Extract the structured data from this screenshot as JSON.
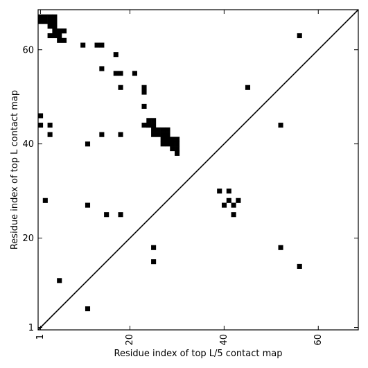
{
  "chart_data": {
    "type": "heatmap",
    "title": "",
    "xlabel": "Residue index of top L/5 contact map",
    "ylabel": "Residue index of top L contact map",
    "xlim": [
      0.5,
      68.5
    ],
    "ylim": [
      0.5,
      68.5
    ],
    "xticks": [
      1,
      20,
      40,
      60
    ],
    "yticks": [
      1,
      20,
      40,
      60
    ],
    "diagonal_line": true,
    "color": "#000000",
    "cells": [
      [
        1,
        67
      ],
      [
        2,
        67
      ],
      [
        3,
        67
      ],
      [
        4,
        67
      ],
      [
        1,
        66
      ],
      [
        2,
        66
      ],
      [
        3,
        66
      ],
      [
        4,
        66
      ],
      [
        3,
        65
      ],
      [
        4,
        65
      ],
      [
        4,
        64
      ],
      [
        5,
        64
      ],
      [
        6,
        64
      ],
      [
        3,
        63
      ],
      [
        4,
        63
      ],
      [
        5,
        63
      ],
      [
        5,
        62
      ],
      [
        6,
        62
      ],
      [
        10,
        61
      ],
      [
        13,
        61
      ],
      [
        14,
        61
      ],
      [
        17,
        59
      ],
      [
        14,
        56
      ],
      [
        17,
        55
      ],
      [
        18,
        55
      ],
      [
        21,
        55
      ],
      [
        18,
        52
      ],
      [
        23,
        52
      ],
      [
        45,
        52
      ],
      [
        23,
        51
      ],
      [
        23,
        48
      ],
      [
        1,
        46
      ],
      [
        1,
        44
      ],
      [
        3,
        44
      ],
      [
        23,
        44
      ],
      [
        24,
        44
      ],
      [
        52,
        44
      ],
      [
        24,
        45
      ],
      [
        25,
        45
      ],
      [
        24,
        44
      ],
      [
        25,
        44
      ],
      [
        25,
        43
      ],
      [
        26,
        43
      ],
      [
        27,
        43
      ],
      [
        28,
        43
      ],
      [
        25,
        42
      ],
      [
        26,
        42
      ],
      [
        27,
        42
      ],
      [
        28,
        42
      ],
      [
        14,
        42
      ],
      [
        18,
        42
      ],
      [
        3,
        42
      ],
      [
        27,
        41
      ],
      [
        28,
        41
      ],
      [
        29,
        41
      ],
      [
        30,
        41
      ],
      [
        27,
        40
      ],
      [
        28,
        40
      ],
      [
        29,
        40
      ],
      [
        30,
        40
      ],
      [
        11,
        40
      ],
      [
        29,
        39
      ],
      [
        30,
        39
      ],
      [
        30,
        38
      ],
      [
        39,
        30
      ],
      [
        41,
        30
      ],
      [
        2,
        28
      ],
      [
        41,
        28
      ],
      [
        43,
        28
      ],
      [
        11,
        27
      ],
      [
        40,
        27
      ],
      [
        42,
        27
      ],
      [
        15,
        25
      ],
      [
        18,
        25
      ],
      [
        42,
        25
      ],
      [
        25,
        18
      ],
      [
        52,
        18
      ],
      [
        25,
        15
      ],
      [
        56,
        14
      ],
      [
        56,
        63
      ],
      [
        5,
        11
      ],
      [
        11,
        5
      ]
    ]
  }
}
